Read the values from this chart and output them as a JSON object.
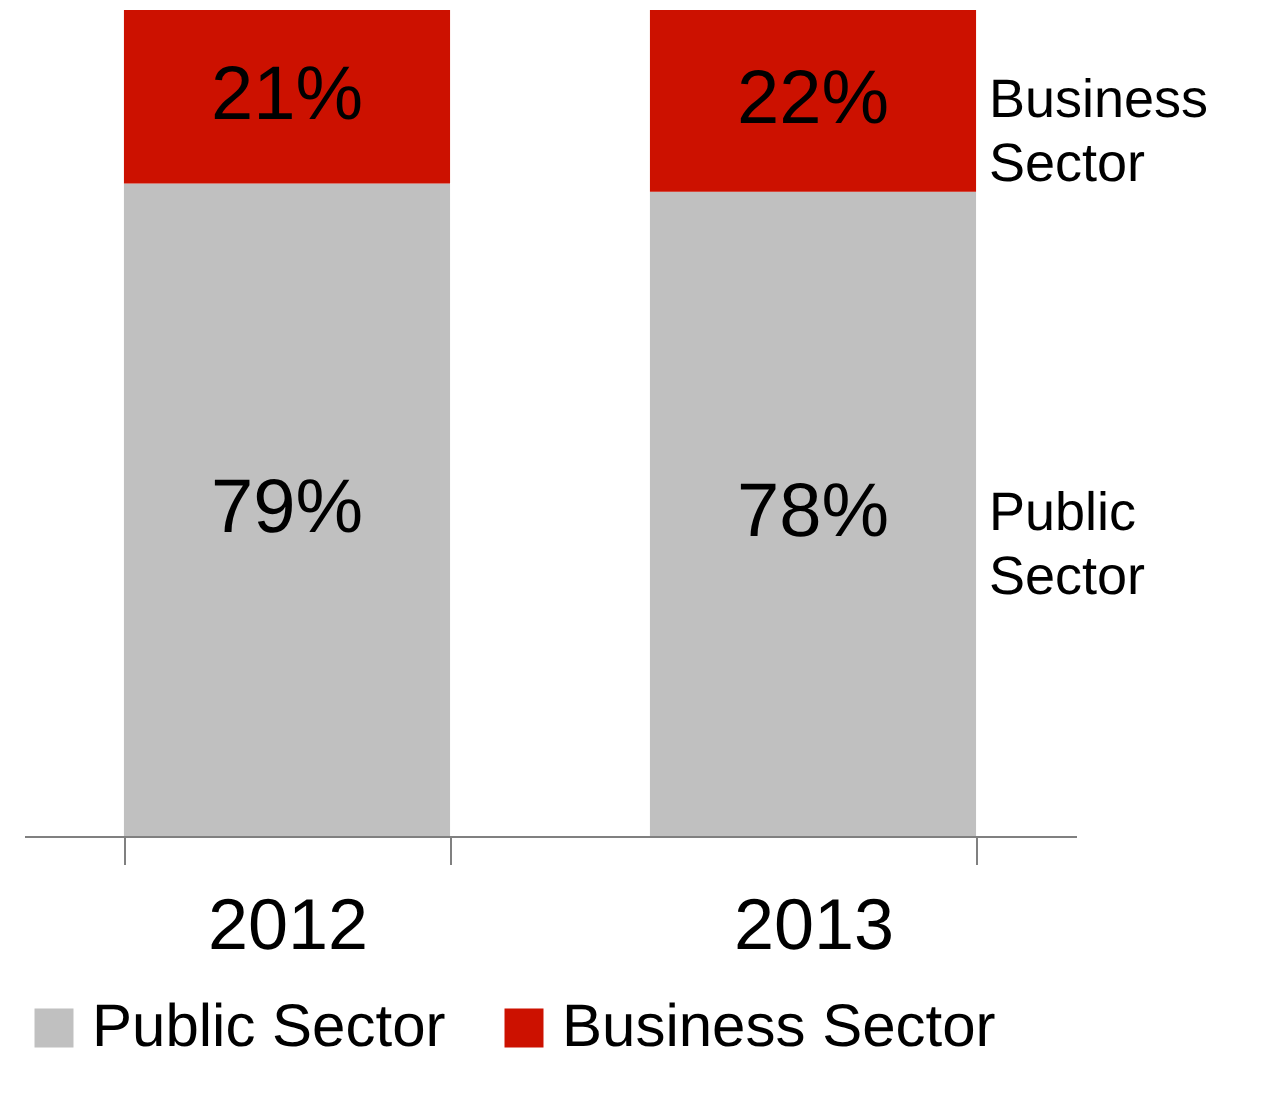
{
  "chart_data": {
    "type": "bar",
    "stacked": true,
    "categories": [
      "2012",
      "2013"
    ],
    "series": [
      {
        "name": "Public Sector",
        "color": "#c0c0c0",
        "values": [
          79,
          78
        ],
        "value_labels": [
          "79%",
          "78%"
        ]
      },
      {
        "name": "Business Sector",
        "color": "#cc1100",
        "values": [
          21,
          22
        ],
        "value_labels": [
          "21%",
          "22%"
        ]
      }
    ],
    "annotations": [
      "Public Sector",
      "Business Sector"
    ],
    "legend": "bottom"
  }
}
